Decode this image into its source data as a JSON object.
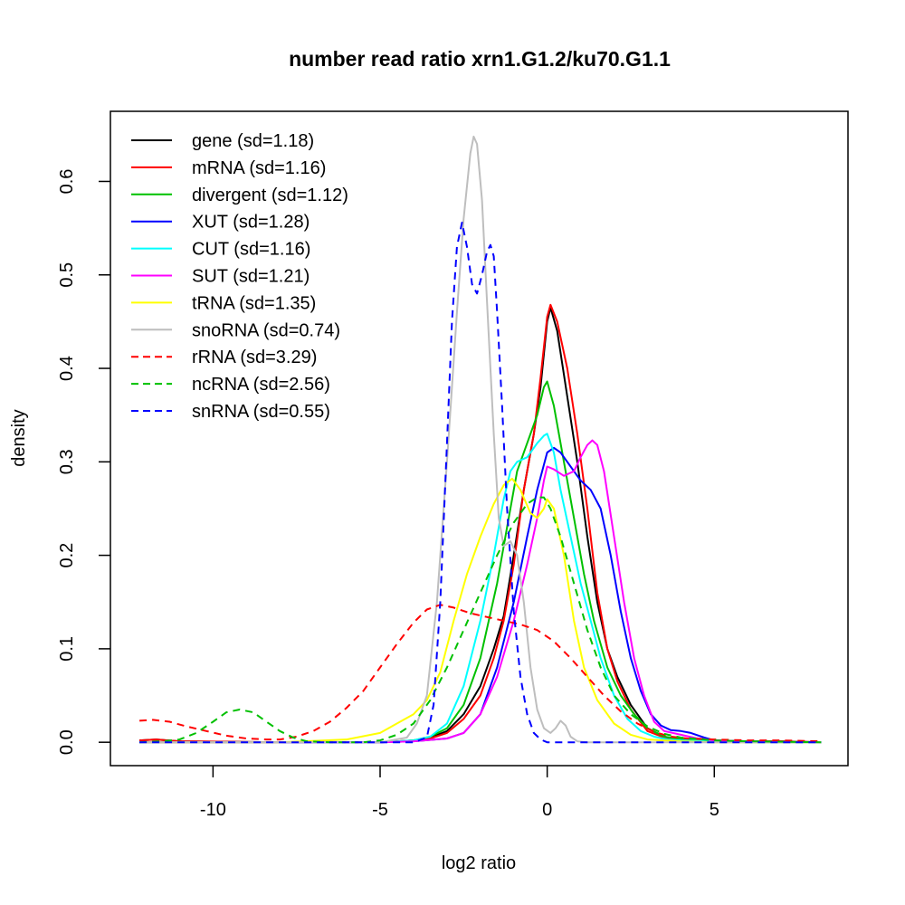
{
  "chart_data": {
    "type": "line",
    "title": "number read ratio xrn1.G1.2/ku70.G1.1",
    "xlabel": "log2 ratio",
    "ylabel": "density",
    "xlim": [
      -13.07,
      9.0
    ],
    "ylim": [
      -0.025,
      0.675
    ],
    "xticks": [
      -10,
      -5,
      0,
      5
    ],
    "xtick_labels": [
      "-10",
      "-5",
      "0",
      "5"
    ],
    "yticks": [
      0.0,
      0.1,
      0.2,
      0.3,
      0.4,
      0.5,
      0.6
    ],
    "ytick_labels": [
      "0.0",
      "0.1",
      "0.2",
      "0.3",
      "0.4",
      "0.5",
      "0.6"
    ],
    "grid": false,
    "legend_position": "top-left",
    "series": [
      {
        "name": "gene (sd=1.18)",
        "color": "#000000",
        "dash": "solid",
        "x": [
          -12.2,
          -11.7,
          -11,
          -8,
          -5,
          -4,
          -3.5,
          -3,
          -2.5,
          -2,
          -1.6,
          -1.3,
          -1.0,
          -0.7,
          -0.4,
          -0.2,
          0,
          0.1,
          0.3,
          0.6,
          0.9,
          1.2,
          1.5,
          1.8,
          2.1,
          2.5,
          3,
          3.5,
          4,
          5,
          6,
          7,
          8.2
        ],
        "y": [
          0.002,
          0.003,
          0.001,
          0,
          0,
          0.002,
          0.005,
          0.012,
          0.03,
          0.06,
          0.1,
          0.135,
          0.2,
          0.27,
          0.33,
          0.38,
          0.45,
          0.465,
          0.44,
          0.37,
          0.3,
          0.22,
          0.15,
          0.1,
          0.07,
          0.04,
          0.015,
          0.006,
          0.003,
          0.002,
          0.001,
          0.001,
          0
        ]
      },
      {
        "name": "mRNA (sd=1.16)",
        "color": "#ff0000",
        "dash": "solid",
        "x": [
          -12.2,
          -11.7,
          -11,
          -8,
          -5,
          -4,
          -3.5,
          -3,
          -2.5,
          -2,
          -1.6,
          -1.3,
          -1.0,
          -0.7,
          -0.4,
          -0.2,
          0,
          0.1,
          0.3,
          0.6,
          0.9,
          1.2,
          1.5,
          1.8,
          2.1,
          2.5,
          3,
          3.5,
          4,
          5,
          6,
          7,
          8.2
        ],
        "y": [
          0.002,
          0.003,
          0.001,
          0,
          0,
          0.002,
          0.004,
          0.01,
          0.025,
          0.05,
          0.09,
          0.13,
          0.19,
          0.27,
          0.33,
          0.39,
          0.455,
          0.468,
          0.45,
          0.4,
          0.33,
          0.25,
          0.16,
          0.1,
          0.065,
          0.035,
          0.012,
          0.005,
          0.003,
          0.002,
          0.001,
          0.001,
          0
        ]
      },
      {
        "name": "divergent (sd=1.12)",
        "color": "#00c000",
        "dash": "solid",
        "x": [
          -12.2,
          -8,
          -5,
          -4,
          -3.5,
          -3,
          -2.5,
          -2,
          -1.5,
          -1.2,
          -0.9,
          -0.6,
          -0.3,
          -0.1,
          0,
          0.2,
          0.5,
          0.8,
          1.1,
          1.4,
          1.8,
          2.2,
          2.6,
          3,
          3.5,
          4,
          5,
          6,
          8.2
        ],
        "y": [
          0,
          0,
          0,
          0.002,
          0.006,
          0.015,
          0.04,
          0.09,
          0.17,
          0.23,
          0.29,
          0.32,
          0.35,
          0.38,
          0.386,
          0.36,
          0.3,
          0.24,
          0.18,
          0.13,
          0.08,
          0.05,
          0.03,
          0.015,
          0.006,
          0.003,
          0.001,
          0.001,
          0
        ]
      },
      {
        "name": "XUT (sd=1.28)",
        "color": "#0000ff",
        "dash": "solid",
        "x": [
          -12.2,
          -8,
          -5,
          -4,
          -3,
          -2.5,
          -2,
          -1.5,
          -1.0,
          -0.6,
          -0.3,
          0,
          0.2,
          0.4,
          0.7,
          1.0,
          1.3,
          1.6,
          1.9,
          2.2,
          2.5,
          2.8,
          3.1,
          3.4,
          3.7,
          4.0,
          4.3,
          4.7,
          5,
          6,
          7,
          8.2
        ],
        "y": [
          0,
          0,
          0,
          0.001,
          0.004,
          0.01,
          0.03,
          0.08,
          0.15,
          0.22,
          0.27,
          0.31,
          0.315,
          0.31,
          0.295,
          0.28,
          0.27,
          0.25,
          0.2,
          0.14,
          0.09,
          0.055,
          0.03,
          0.018,
          0.013,
          0.012,
          0.01,
          0.005,
          0.002,
          0.001,
          0,
          0
        ]
      },
      {
        "name": "CUT (sd=1.16)",
        "color": "#00ffff",
        "dash": "solid",
        "x": [
          -12.2,
          -8,
          -5,
          -4,
          -3.5,
          -3,
          -2.5,
          -2,
          -1.6,
          -1.3,
          -1.1,
          -0.9,
          -0.6,
          -0.3,
          -0.1,
          0,
          0.2,
          0.4,
          0.7,
          1.0,
          1.3,
          1.6,
          2,
          2.4,
          2.8,
          3.2,
          3.6,
          4,
          5,
          6,
          8.2
        ],
        "y": [
          0,
          0,
          0,
          0.002,
          0.006,
          0.02,
          0.06,
          0.13,
          0.2,
          0.26,
          0.29,
          0.3,
          0.305,
          0.32,
          0.328,
          0.33,
          0.31,
          0.27,
          0.22,
          0.17,
          0.13,
          0.09,
          0.05,
          0.025,
          0.012,
          0.006,
          0.003,
          0.002,
          0.001,
          0,
          0
        ]
      },
      {
        "name": "SUT (sd=1.21)",
        "color": "#ff00ff",
        "dash": "solid",
        "x": [
          -12.2,
          -8,
          -5,
          -4,
          -3,
          -2.5,
          -2,
          -1.5,
          -1.0,
          -0.6,
          -0.3,
          -0.1,
          0,
          0.2,
          0.5,
          0.8,
          1.0,
          1.2,
          1.35,
          1.5,
          1.7,
          2.0,
          2.3,
          2.6,
          2.9,
          3.2,
          3.5,
          4,
          4.5,
          5,
          6,
          8.2
        ],
        "y": [
          0,
          0,
          0,
          0.001,
          0.004,
          0.01,
          0.03,
          0.07,
          0.13,
          0.19,
          0.24,
          0.28,
          0.295,
          0.292,
          0.285,
          0.29,
          0.305,
          0.318,
          0.323,
          0.318,
          0.29,
          0.22,
          0.15,
          0.09,
          0.05,
          0.022,
          0.012,
          0.008,
          0.004,
          0.002,
          0.001,
          0
        ]
      },
      {
        "name": "tRNA (sd=1.35)",
        "color": "#ffff00",
        "dash": "solid",
        "x": [
          -12.2,
          -8,
          -6,
          -5,
          -4.5,
          -4,
          -3.6,
          -3.2,
          -2.8,
          -2.4,
          -2,
          -1.6,
          -1.3,
          -1.05,
          -0.8,
          -0.5,
          -0.3,
          -0.1,
          0,
          0.2,
          0.5,
          0.8,
          1.1,
          1.5,
          2,
          2.5,
          3,
          4,
          5,
          8.2
        ],
        "y": [
          0,
          0,
          0.003,
          0.01,
          0.02,
          0.03,
          0.045,
          0.075,
          0.13,
          0.18,
          0.22,
          0.255,
          0.275,
          0.282,
          0.27,
          0.245,
          0.24,
          0.25,
          0.26,
          0.25,
          0.2,
          0.13,
          0.08,
          0.045,
          0.02,
          0.008,
          0.003,
          0.001,
          0,
          0
        ]
      },
      {
        "name": "snoRNA (sd=0.74)",
        "color": "#bebebe",
        "dash": "solid",
        "x": [
          -12.2,
          -8,
          -5,
          -4.2,
          -3.9,
          -3.6,
          -3.3,
          -3.0,
          -2.7,
          -2.5,
          -2.3,
          -2.2,
          -2.1,
          -1.95,
          -1.8,
          -1.6,
          -1.45,
          -1.3,
          -1.1,
          -0.9,
          -0.7,
          -0.5,
          -0.3,
          -0.1,
          0.1,
          0.25,
          0.4,
          0.55,
          0.7,
          0.9,
          1.2,
          8.2
        ],
        "y": [
          0,
          0,
          0,
          0.005,
          0.02,
          0.05,
          0.15,
          0.3,
          0.46,
          0.56,
          0.63,
          0.648,
          0.64,
          0.58,
          0.47,
          0.33,
          0.24,
          0.21,
          0.215,
          0.2,
          0.15,
          0.08,
          0.035,
          0.015,
          0.01,
          0.015,
          0.023,
          0.018,
          0.006,
          0.001,
          0,
          0
        ]
      },
      {
        "name": "rRNA (sd=3.29)",
        "color": "#ff0000",
        "dash": "dashed",
        "x": [
          -12.2,
          -11.8,
          -11.3,
          -10.8,
          -10.2,
          -9.6,
          -9,
          -8.4,
          -8,
          -7.5,
          -7,
          -6.5,
          -6,
          -5.5,
          -5,
          -4.5,
          -4,
          -3.6,
          -3.2,
          -2.8,
          -2.3,
          -1.8,
          -1.3,
          -0.8,
          -0.3,
          0.2,
          0.7,
          1.2,
          1.7,
          2.2,
          2.7,
          3.2,
          3.7,
          4.2,
          5,
          6,
          7,
          8.2
        ],
        "y": [
          0.023,
          0.024,
          0.022,
          0.017,
          0.012,
          0.007,
          0.004,
          0.003,
          0.003,
          0.006,
          0.012,
          0.022,
          0.037,
          0.055,
          0.08,
          0.105,
          0.128,
          0.142,
          0.147,
          0.144,
          0.138,
          0.134,
          0.13,
          0.126,
          0.12,
          0.108,
          0.09,
          0.07,
          0.05,
          0.033,
          0.02,
          0.011,
          0.006,
          0.004,
          0.003,
          0.002,
          0.002,
          0.001
        ]
      },
      {
        "name": "ncRNA (sd=2.56)",
        "color": "#00c000",
        "dash": "dashed",
        "x": [
          -12.2,
          -11.5,
          -11,
          -10.5,
          -10,
          -9.6,
          -9.2,
          -8.8,
          -8.4,
          -8,
          -7.6,
          -7.2,
          -6.5,
          -5.5,
          -5,
          -4.5,
          -4,
          -3.5,
          -3,
          -2.5,
          -2,
          -1.5,
          -1,
          -0.6,
          -0.3,
          -0.1,
          0.1,
          0.4,
          0.8,
          1.2,
          1.6,
          2,
          2.5,
          3,
          3.5,
          4,
          5,
          6,
          8.2
        ],
        "y": [
          0,
          0.001,
          0.003,
          0.01,
          0.022,
          0.032,
          0.035,
          0.032,
          0.022,
          0.012,
          0.005,
          0.001,
          0,
          0,
          0.002,
          0.008,
          0.02,
          0.045,
          0.08,
          0.12,
          0.16,
          0.2,
          0.235,
          0.255,
          0.262,
          0.262,
          0.25,
          0.22,
          0.17,
          0.12,
          0.08,
          0.05,
          0.03,
          0.017,
          0.009,
          0.005,
          0.002,
          0.001,
          0
        ]
      },
      {
        "name": "snRNA (sd=0.55)",
        "color": "#0000ff",
        "dash": "dashed",
        "x": [
          -12.2,
          -8,
          -4,
          -3.6,
          -3.4,
          -3.2,
          -3.0,
          -2.85,
          -2.7,
          -2.55,
          -2.4,
          -2.25,
          -2.1,
          -1.95,
          -1.8,
          -1.7,
          -1.6,
          -1.5,
          -1.35,
          -1.2,
          -1.0,
          -0.8,
          -0.6,
          -0.4,
          -0.2,
          0,
          8.2
        ],
        "y": [
          0,
          0,
          0,
          0.005,
          0.04,
          0.15,
          0.32,
          0.45,
          0.53,
          0.556,
          0.53,
          0.49,
          0.48,
          0.5,
          0.525,
          0.532,
          0.52,
          0.46,
          0.36,
          0.25,
          0.14,
          0.07,
          0.03,
          0.01,
          0.003,
          0,
          0
        ]
      }
    ]
  }
}
